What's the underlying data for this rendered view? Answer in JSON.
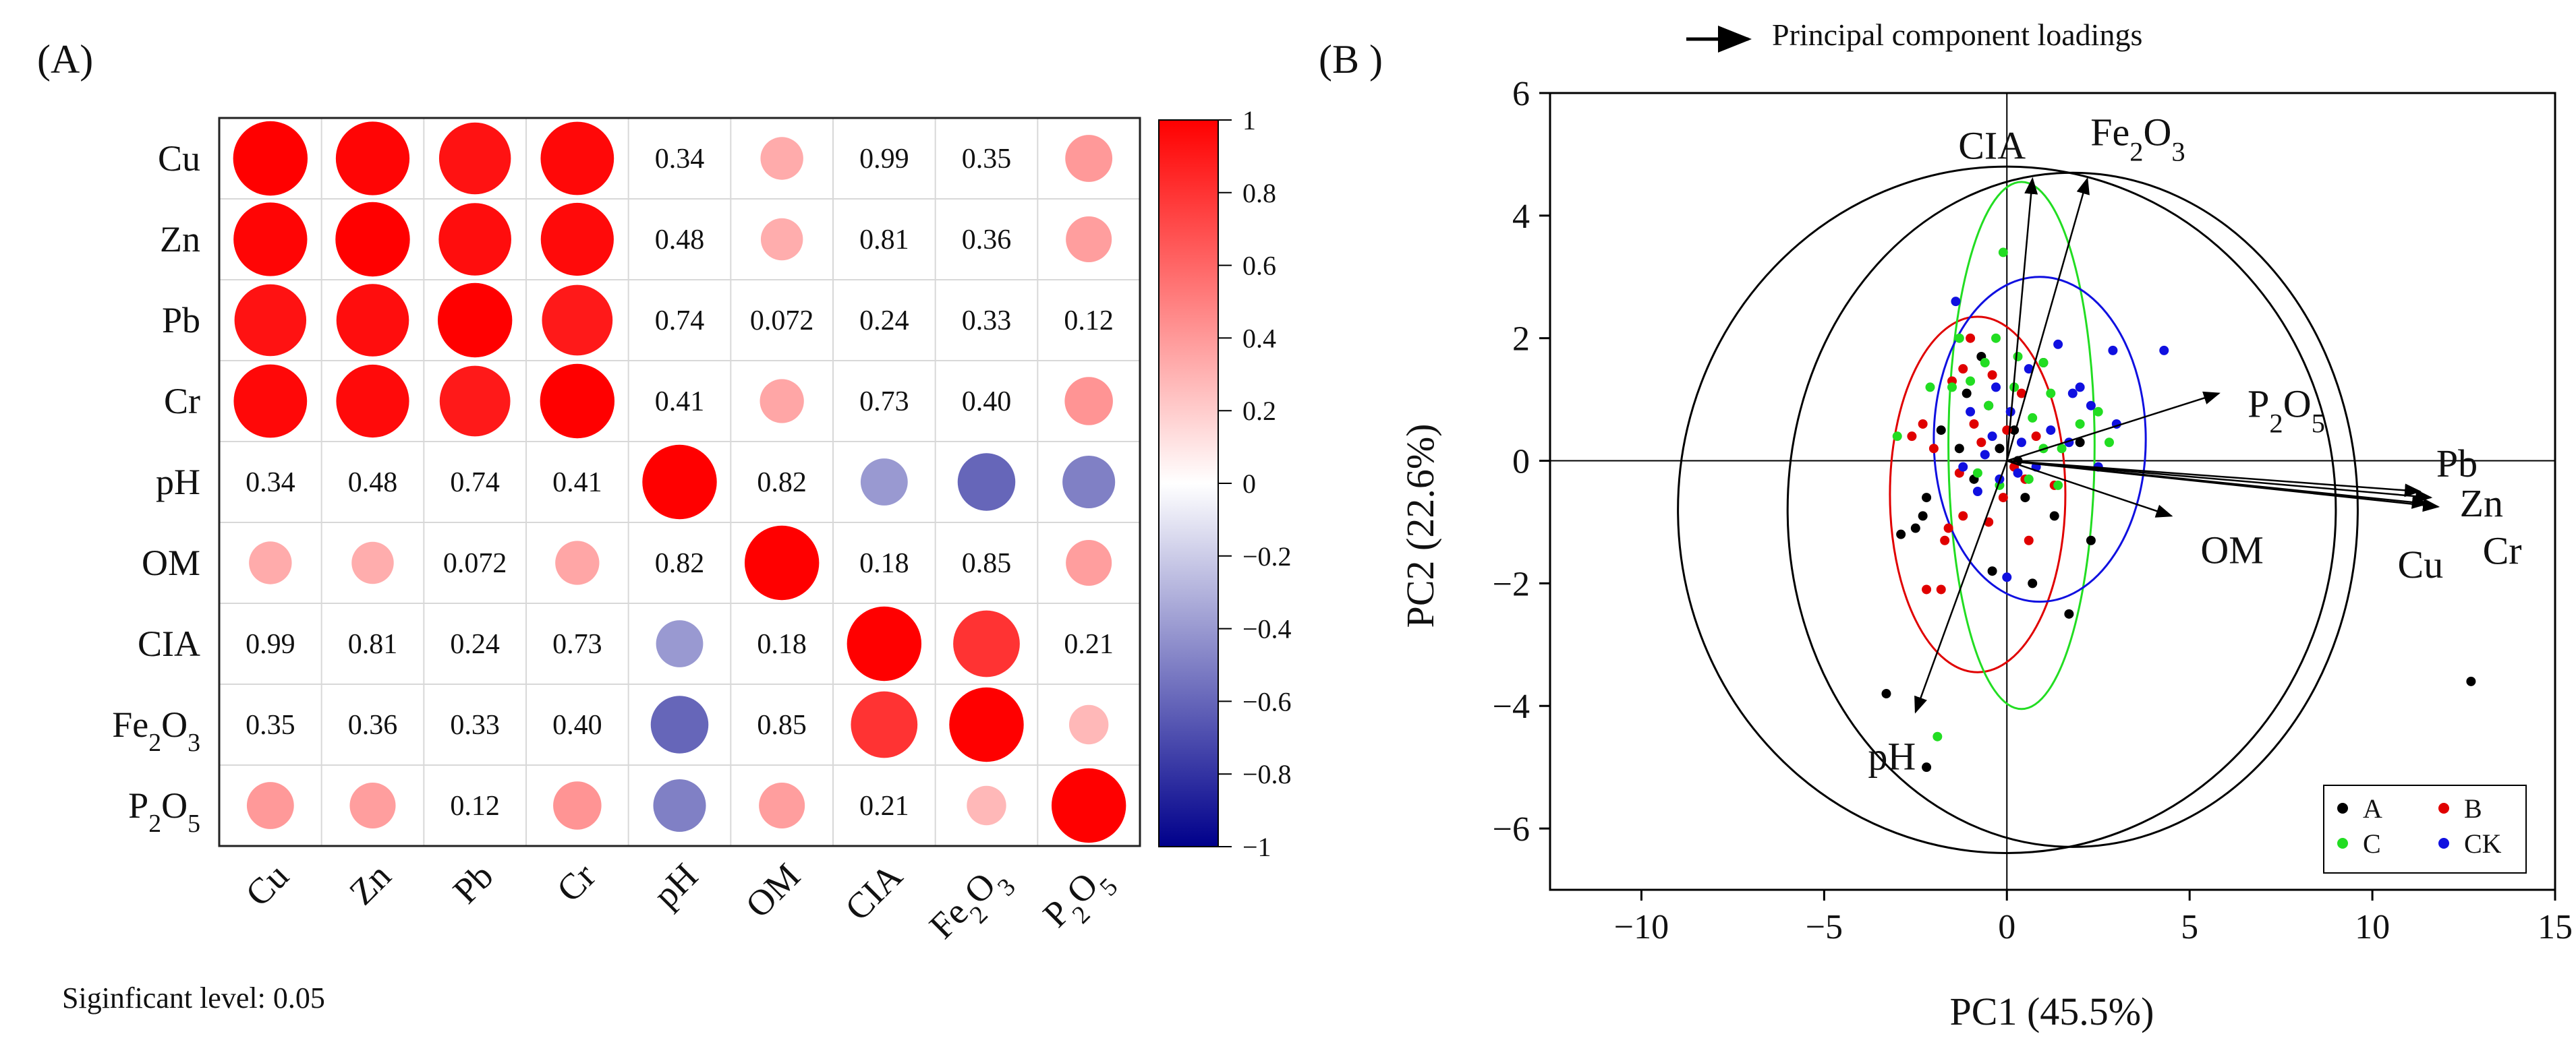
{
  "panel_a": {
    "label": "(A)",
    "variables": [
      "Cu",
      "Zn",
      "Pb",
      "Cr",
      "pH",
      "OM",
      "CIA",
      "Fe2O3",
      "P2O5"
    ],
    "colorbar_ticks": [
      "1",
      "0.8",
      "0.6",
      "0.4",
      "0.2",
      "0",
      "−0.2",
      "−0.4",
      "−0.6",
      "−0.8",
      "−1"
    ],
    "colorbar_range": [
      -1,
      1
    ],
    "colors": {
      "positive": "#ff0000",
      "neutral": "#ffffff",
      "negative": "#00008b"
    },
    "footnote": "Siginficant level: 0.05"
  },
  "panel_b": {
    "label": "(B )",
    "legend_title": "Principal component loadings",
    "group_colors": {
      "A": "#000000",
      "B": "#e00000",
      "C": "#22dd22",
      "CK": "#1010e0"
    }
  },
  "chart_data": [
    {
      "type": "heatmap",
      "variables": [
        "Cu",
        "Zn",
        "Pb",
        "Cr",
        "pH",
        "OM",
        "CIA",
        "Fe2O3",
        "P2O5"
      ],
      "matrix": [
        [
          1.0,
          0.98,
          0.93,
          0.97,
          -0.1,
          0.33,
          0.0,
          0.12,
          0.4
        ],
        [
          0.98,
          1.0,
          0.95,
          0.96,
          -0.08,
          0.32,
          0.02,
          0.11,
          0.38
        ],
        [
          0.93,
          0.95,
          1.0,
          0.9,
          -0.04,
          0.18,
          0.12,
          0.12,
          0.16
        ],
        [
          0.97,
          0.96,
          0.9,
          1.0,
          -0.09,
          0.35,
          0.04,
          0.09,
          0.42
        ],
        [
          -0.1,
          -0.08,
          -0.04,
          -0.09,
          1.0,
          0.02,
          -0.4,
          -0.6,
          -0.5
        ],
        [
          0.33,
          0.32,
          0.18,
          0.35,
          0.02,
          1.0,
          -0.13,
          0.02,
          0.38
        ],
        [
          0.0,
          0.02,
          0.12,
          0.04,
          -0.4,
          -0.13,
          1.0,
          0.8,
          -0.12
        ],
        [
          0.12,
          0.11,
          0.12,
          0.09,
          -0.6,
          0.02,
          0.8,
          1.0,
          0.28
        ],
        [
          0.4,
          0.38,
          0.16,
          0.42,
          -0.5,
          0.38,
          -0.12,
          0.28,
          1.0
        ]
      ],
      "p_values": [
        [
          null,
          null,
          null,
          null,
          "0.34",
          null,
          "0.99",
          "0.35",
          null
        ],
        [
          null,
          null,
          null,
          null,
          "0.48",
          null,
          "0.81",
          "0.36",
          null
        ],
        [
          null,
          null,
          null,
          null,
          "0.74",
          "0.072",
          "0.24",
          "0.33",
          "0.12"
        ],
        [
          null,
          null,
          null,
          null,
          "0.41",
          null,
          "0.73",
          "0.40",
          null
        ],
        [
          "0.34",
          "0.48",
          "0.74",
          "0.41",
          null,
          "0.82",
          null,
          null,
          null
        ],
        [
          null,
          null,
          "0.072",
          null,
          "0.82",
          null,
          "0.18",
          "0.85",
          null
        ],
        [
          "0.99",
          "0.81",
          "0.24",
          "0.73",
          null,
          "0.18",
          null,
          null,
          "0.21"
        ],
        [
          "0.35",
          "0.36",
          "0.33",
          "0.40",
          null,
          "0.85",
          null,
          null,
          null
        ],
        [
          null,
          null,
          "0.12",
          null,
          null,
          null,
          "0.21",
          null,
          null
        ]
      ],
      "significance_level": 0.05
    },
    {
      "type": "scatter",
      "xlabel": "PC1 (45.5%)",
      "ylabel": "PC2 (22.6%)",
      "xlim": [
        -12.5,
        15
      ],
      "ylim": [
        -7,
        6
      ],
      "xticks": [
        -10,
        -5,
        0,
        5,
        10,
        15
      ],
      "yticks": [
        -6,
        -4,
        -2,
        0,
        2,
        4,
        6
      ],
      "legend": [
        "A",
        "B",
        "C",
        "CK"
      ],
      "legend_position": "bottom-right",
      "loadings": [
        {
          "name": "CIA",
          "x": 0.7,
          "y": 4.6
        },
        {
          "name": "Fe2O3",
          "x": 2.2,
          "y": 4.6
        },
        {
          "name": "P2O5",
          "x": 5.8,
          "y": 1.1
        },
        {
          "name": "Pb",
          "x": 11.3,
          "y": -0.5
        },
        {
          "name": "Zn",
          "x": 11.6,
          "y": -0.6
        },
        {
          "name": "Cu",
          "x": 11.5,
          "y": -0.7
        },
        {
          "name": "Cr",
          "x": 11.8,
          "y": -0.75
        },
        {
          "name": "OM",
          "x": 4.5,
          "y": -0.9
        },
        {
          "name": "pH",
          "x": -2.5,
          "y": -4.1
        }
      ],
      "ellipses": [
        {
          "group": "all",
          "cx": 0,
          "cy": -0.8,
          "rx": 9,
          "ry": 5.6
        },
        {
          "group": "A",
          "cx": 1.8,
          "cy": -0.8,
          "rx": 7.8,
          "ry": 5.5
        },
        {
          "group": "B",
          "cx": -0.8,
          "cy": -0.55,
          "rx": 2.4,
          "ry": 2.9
        },
        {
          "group": "C",
          "cx": 0.4,
          "cy": 0.25,
          "rx": 2.0,
          "ry": 4.3
        },
        {
          "group": "CK",
          "cx": 0.9,
          "cy": 0.35,
          "rx": 2.9,
          "ry": 2.65
        }
      ],
      "points": {
        "A": [
          [
            -3.3,
            -3.8
          ],
          [
            -2.2,
            -5.0
          ],
          [
            12.7,
            -3.6
          ],
          [
            1.7,
            -2.5
          ],
          [
            2.3,
            -1.3
          ],
          [
            1.0,
            1.6
          ],
          [
            -0.7,
            1.7
          ],
          [
            -2.2,
            -0.6
          ],
          [
            -2.5,
            -1.1
          ],
          [
            -1.3,
            0.2
          ],
          [
            -0.5,
            0.9
          ],
          [
            0.2,
            0.5
          ],
          [
            0.5,
            -0.6
          ],
          [
            -0.9,
            -0.3
          ],
          [
            -1.8,
            0.5
          ],
          [
            1.3,
            -0.9
          ],
          [
            -2.9,
            -1.2
          ],
          [
            2.0,
            0.3
          ],
          [
            -0.4,
            -1.8
          ],
          [
            0.7,
            -2.0
          ],
          [
            -1.1,
            1.1
          ],
          [
            -2.3,
            -0.9
          ],
          [
            0.3,
            0.0
          ],
          [
            -0.2,
            0.2
          ]
        ],
        "B": [
          [
            -2.6,
            0.4
          ],
          [
            -2.3,
            0.6
          ],
          [
            -1.5,
            1.3
          ],
          [
            -1.0,
            2.0
          ],
          [
            -1.2,
            -0.9
          ],
          [
            -1.7,
            -1.3
          ],
          [
            -2.2,
            -2.1
          ],
          [
            -1.8,
            -2.1
          ],
          [
            -0.5,
            -1.0
          ],
          [
            -0.1,
            -0.6
          ],
          [
            0.5,
            -0.3
          ],
          [
            0.4,
            1.1
          ],
          [
            -0.9,
            0.6
          ],
          [
            1.3,
            -0.4
          ],
          [
            0.6,
            -1.3
          ],
          [
            -1.3,
            -0.2
          ],
          [
            -0.7,
            0.3
          ],
          [
            0.2,
            -0.1
          ],
          [
            -0.4,
            1.4
          ],
          [
            -1.6,
            -1.1
          ],
          [
            0.0,
            0.5
          ],
          [
            -1.2,
            1.5
          ],
          [
            -2.0,
            0.2
          ],
          [
            0.8,
            0.4
          ]
        ],
        "C": [
          [
            -0.1,
            3.4
          ],
          [
            -1.3,
            2.0
          ],
          [
            0.3,
            1.7
          ],
          [
            1.0,
            1.6
          ],
          [
            2.0,
            0.6
          ],
          [
            2.8,
            0.3
          ],
          [
            -2.1,
            1.2
          ],
          [
            -1.0,
            1.3
          ],
          [
            -0.5,
            0.9
          ],
          [
            0.7,
            0.7
          ],
          [
            1.2,
            1.1
          ],
          [
            -3.0,
            0.4
          ],
          [
            -0.8,
            -0.2
          ],
          [
            0.6,
            -0.3
          ],
          [
            1.5,
            0.2
          ],
          [
            1.4,
            -0.4
          ],
          [
            -1.5,
            1.2
          ],
          [
            -0.3,
            2.0
          ],
          [
            2.5,
            0.8
          ],
          [
            -1.9,
            -4.5
          ],
          [
            0.2,
            1.2
          ],
          [
            -0.2,
            -0.4
          ],
          [
            1.0,
            0.2
          ],
          [
            -0.6,
            1.6
          ]
        ],
        "CK": [
          [
            -1.4,
            2.6
          ],
          [
            -1.0,
            0.8
          ],
          [
            0.1,
            0.8
          ],
          [
            1.2,
            0.5
          ],
          [
            1.4,
            1.9
          ],
          [
            2.0,
            1.2
          ],
          [
            2.9,
            1.8
          ],
          [
            4.3,
            1.8
          ],
          [
            3.0,
            0.6
          ],
          [
            1.7,
            0.3
          ],
          [
            -0.2,
            -0.3
          ],
          [
            -0.8,
            -0.5
          ],
          [
            0.3,
            -0.2
          ],
          [
            -0.3,
            1.2
          ],
          [
            2.5,
            -0.1
          ],
          [
            -0.6,
            0.1
          ],
          [
            0.0,
            -1.9
          ],
          [
            0.8,
            -0.1
          ],
          [
            1.8,
            1.1
          ],
          [
            -1.2,
            -0.1
          ],
          [
            0.4,
            0.3
          ],
          [
            2.3,
            0.9
          ],
          [
            0.6,
            1.5
          ],
          [
            -0.4,
            0.4
          ]
        ]
      }
    }
  ]
}
